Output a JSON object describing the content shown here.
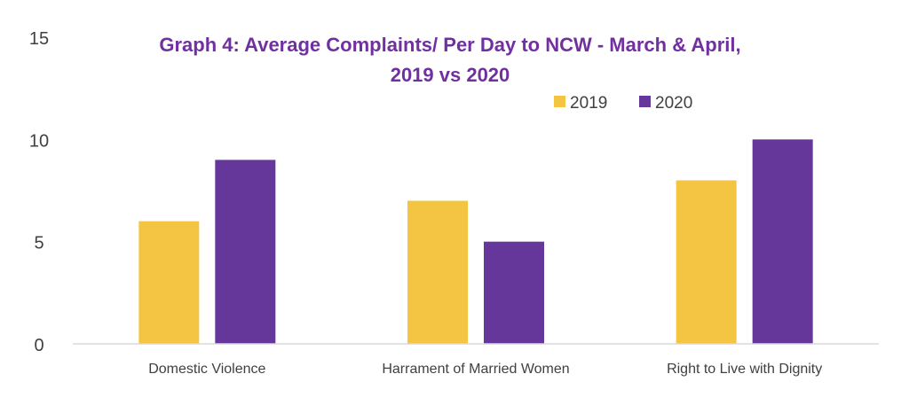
{
  "chart_data": {
    "type": "bar",
    "title_line1": "Graph 4: Average Complaints/ Per Day to NCW - March & April,",
    "title_line2": "2019 vs 2020",
    "categories": [
      "Domestic Violence",
      "Harrament of Married Women",
      "Right to Live with Dignity"
    ],
    "series": [
      {
        "name": "2019",
        "values": [
          6,
          7,
          8
        ],
        "color": "#F4C542"
      },
      {
        "name": "2020",
        "values": [
          9,
          5,
          10
        ],
        "color": "#66379A"
      }
    ],
    "ylim": [
      0,
      15
    ],
    "yticks": [
      "0",
      "5",
      "10",
      "15"
    ],
    "legend_position": "top-right",
    "grid": false,
    "title_color": "#7030A0",
    "axis_color": "#D9D9D9",
    "text_color": "#404040"
  }
}
